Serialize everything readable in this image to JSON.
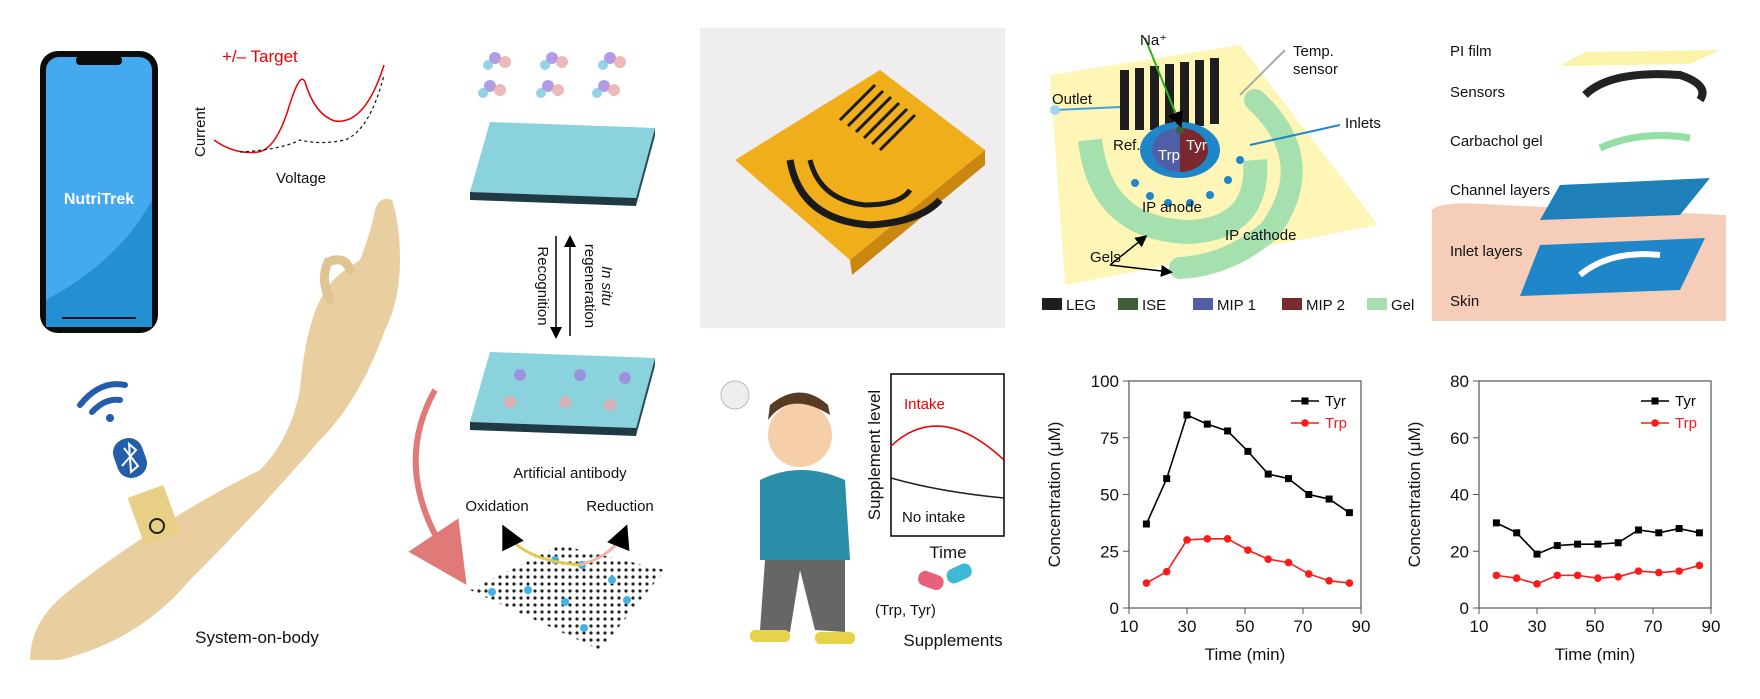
{
  "phone": {
    "app_name": "NutriTrek"
  },
  "cv_sketch": {
    "legend": "+/– Target",
    "ylabel": "Current",
    "xlabel": "Voltage"
  },
  "body": {
    "caption": "System-on-body"
  },
  "antibody": {
    "recognition": "Recognition",
    "regeneration_italic": "In situ",
    "regeneration": "regeneration",
    "caption": "Artificial antibody",
    "oxidation": "Oxidation",
    "reduction": "Reduction"
  },
  "schematic": {
    "labels": {
      "na": "Na⁺",
      "temp": "Temp.",
      "temp2": "sensor",
      "outlet": "Outlet",
      "inlets": "Inlets",
      "ref": "Ref.",
      "trp": "Trp",
      "tyr": "Tyr",
      "anode": "IP anode",
      "cathode": "IP cathode",
      "gels": "Gels"
    },
    "legend": [
      {
        "label": "LEG",
        "color": "#1e1e1e"
      },
      {
        "label": "ISE",
        "color": "#3f5e35"
      },
      {
        "label": "MIP 1",
        "color": "#4f5ea5"
      },
      {
        "label": "MIP 2",
        "color": "#7a2a2e"
      },
      {
        "label": "Gel",
        "color": "#a6e0ae"
      }
    ]
  },
  "layers": [
    "PI film",
    "Sensors",
    "Carbachol gel",
    "Channel layers",
    "Inlet layers",
    "Skin"
  ],
  "supplement": {
    "ylabel": "Supplement level",
    "intake": "Intake",
    "no_intake": "No intake",
    "xlabel": "Time",
    "pills": "(Trp, Tyr)",
    "caption": "Supplements"
  },
  "chart_data": [
    {
      "type": "line",
      "xlabel": "Time (min)",
      "ylabel": "Concentration (μM)",
      "xlim": [
        10,
        90
      ],
      "ylim": [
        0,
        100
      ],
      "xticks": [
        10,
        30,
        50,
        70,
        90
      ],
      "yticks": [
        0,
        25,
        50,
        75,
        100
      ],
      "legend": "top-right",
      "grid": false,
      "x": [
        16,
        23,
        30,
        37,
        44,
        51,
        58,
        65,
        72,
        79,
        86
      ],
      "series": [
        {
          "name": "Tyr",
          "color": "#000000",
          "marker": "square",
          "values": [
            37,
            57,
            85,
            81,
            78,
            69,
            59,
            57,
            50,
            48,
            42
          ]
        },
        {
          "name": "Trp",
          "color": "#ff1a1a",
          "marker": "circle",
          "values": [
            11,
            16,
            30,
            30.5,
            30.5,
            25.5,
            21.5,
            20,
            15,
            12,
            11
          ]
        }
      ]
    },
    {
      "type": "line",
      "xlabel": "Time (min)",
      "ylabel": "Concentration (μM)",
      "xlim": [
        10,
        90
      ],
      "ylim": [
        0,
        80
      ],
      "xticks": [
        10,
        30,
        50,
        70,
        90
      ],
      "yticks": [
        0,
        20,
        40,
        60,
        80
      ],
      "legend": "top-right",
      "grid": false,
      "x": [
        16,
        23,
        30,
        37,
        44,
        51,
        58,
        65,
        72,
        79,
        86
      ],
      "series": [
        {
          "name": "Tyr",
          "color": "#000000",
          "marker": "square",
          "values": [
            30,
            26.5,
            19,
            22,
            22.5,
            22.5,
            23,
            27.5,
            26.5,
            28,
            26.5
          ]
        },
        {
          "name": "Trp",
          "color": "#ff1a1a",
          "marker": "circle",
          "values": [
            11.5,
            10.5,
            8.5,
            11.5,
            11.5,
            10.5,
            11,
            13,
            12.5,
            13,
            15
          ]
        }
      ]
    }
  ]
}
